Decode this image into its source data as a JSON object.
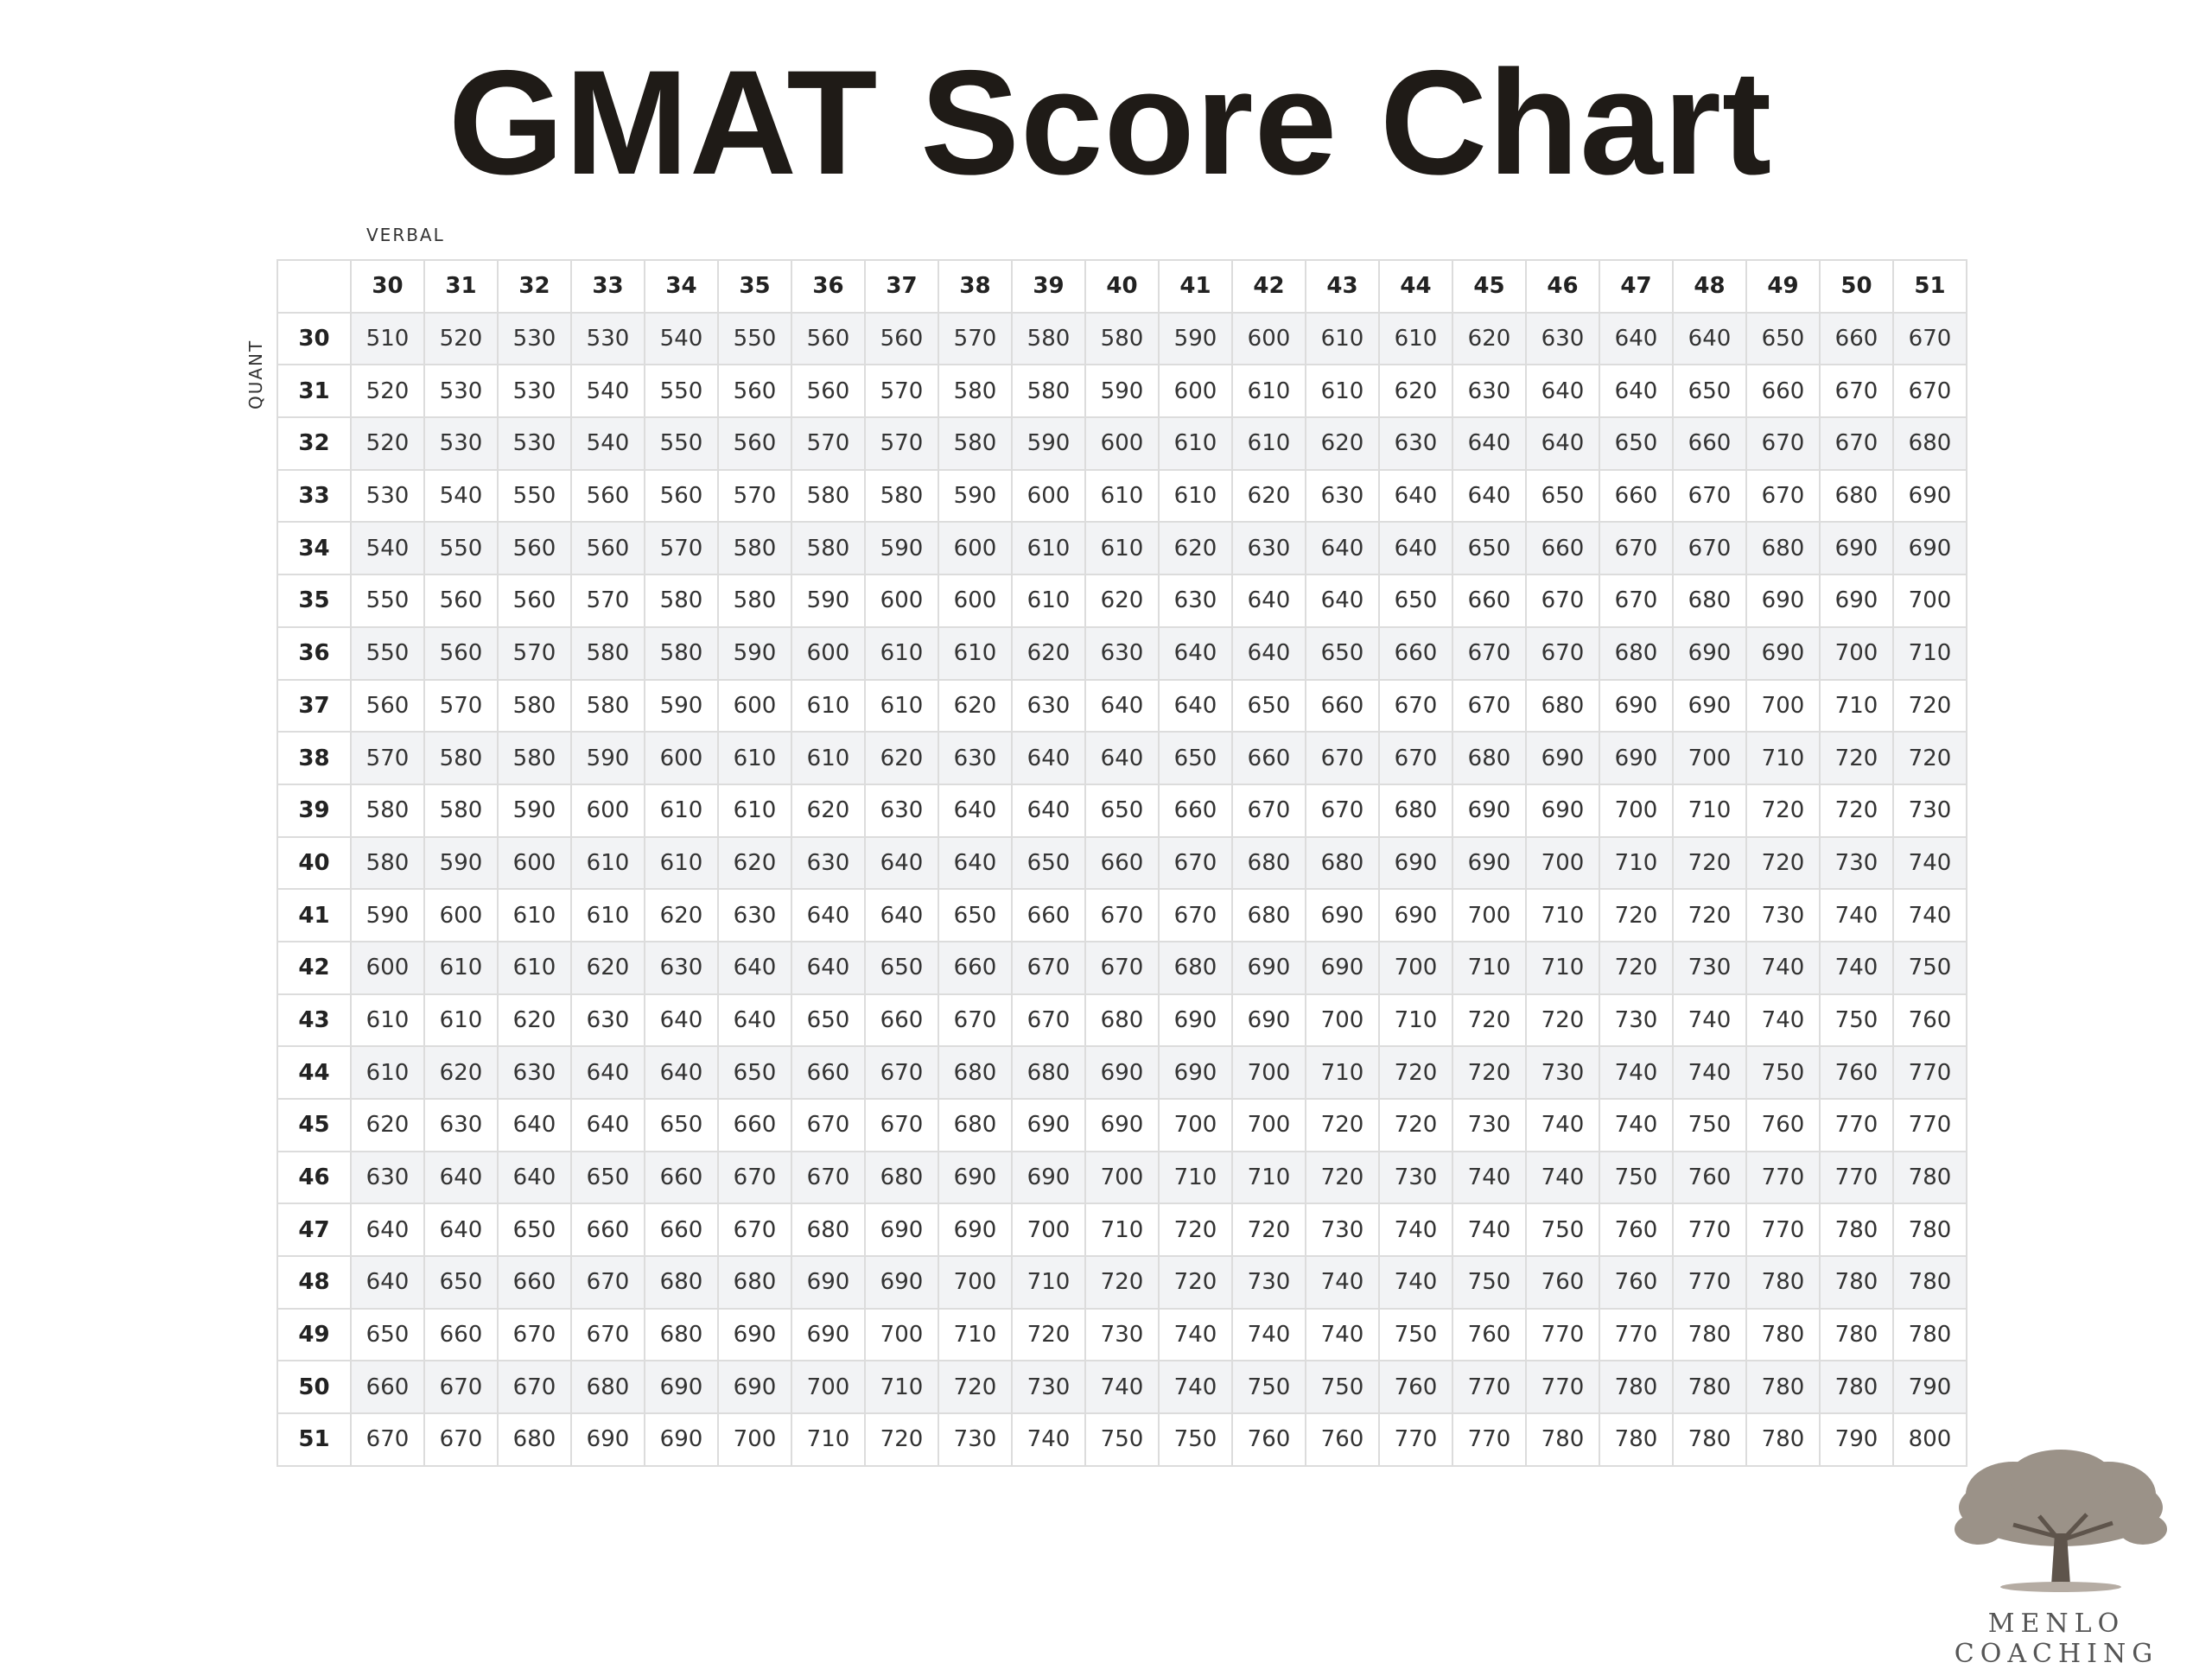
{
  "chart_data": {
    "type": "table",
    "title": "GMAT Score Chart",
    "column_axis_label": "VERBAL",
    "row_axis_label": "QUANT",
    "columns": [
      30,
      31,
      32,
      33,
      34,
      35,
      36,
      37,
      38,
      39,
      40,
      41,
      42,
      43,
      44,
      45,
      46,
      47,
      48,
      49,
      50,
      51
    ],
    "rows": [
      {
        "quant": 30,
        "values": [
          510,
          520,
          530,
          530,
          540,
          550,
          560,
          560,
          570,
          580,
          580,
          590,
          600,
          610,
          610,
          620,
          630,
          640,
          640,
          650,
          660,
          670
        ]
      },
      {
        "quant": 31,
        "values": [
          520,
          530,
          530,
          540,
          550,
          560,
          560,
          570,
          580,
          580,
          590,
          600,
          610,
          610,
          620,
          630,
          640,
          640,
          650,
          660,
          670,
          670
        ]
      },
      {
        "quant": 32,
        "values": [
          520,
          530,
          530,
          540,
          550,
          560,
          570,
          570,
          580,
          590,
          600,
          610,
          610,
          620,
          630,
          640,
          640,
          650,
          660,
          670,
          670,
          680
        ]
      },
      {
        "quant": 33,
        "values": [
          530,
          540,
          550,
          560,
          560,
          570,
          580,
          580,
          590,
          600,
          610,
          610,
          620,
          630,
          640,
          640,
          650,
          660,
          670,
          670,
          680,
          690
        ]
      },
      {
        "quant": 34,
        "values": [
          540,
          550,
          560,
          560,
          570,
          580,
          580,
          590,
          600,
          610,
          610,
          620,
          630,
          640,
          640,
          650,
          660,
          670,
          670,
          680,
          690,
          690
        ]
      },
      {
        "quant": 35,
        "values": [
          550,
          560,
          560,
          570,
          580,
          580,
          590,
          600,
          600,
          610,
          620,
          630,
          640,
          640,
          650,
          660,
          670,
          670,
          680,
          690,
          690,
          700
        ]
      },
      {
        "quant": 36,
        "values": [
          550,
          560,
          570,
          580,
          580,
          590,
          600,
          610,
          610,
          620,
          630,
          640,
          640,
          650,
          660,
          670,
          670,
          680,
          690,
          690,
          700,
          710
        ]
      },
      {
        "quant": 37,
        "values": [
          560,
          570,
          580,
          580,
          590,
          600,
          610,
          610,
          620,
          630,
          640,
          640,
          650,
          660,
          670,
          670,
          680,
          690,
          690,
          700,
          710,
          720
        ]
      },
      {
        "quant": 38,
        "values": [
          570,
          580,
          580,
          590,
          600,
          610,
          610,
          620,
          630,
          640,
          640,
          650,
          660,
          670,
          670,
          680,
          690,
          690,
          700,
          710,
          720,
          720
        ]
      },
      {
        "quant": 39,
        "values": [
          580,
          580,
          590,
          600,
          610,
          610,
          620,
          630,
          640,
          640,
          650,
          660,
          670,
          670,
          680,
          690,
          690,
          700,
          710,
          720,
          720,
          730
        ]
      },
      {
        "quant": 40,
        "values": [
          580,
          590,
          600,
          610,
          610,
          620,
          630,
          640,
          640,
          650,
          660,
          670,
          680,
          680,
          690,
          690,
          700,
          710,
          720,
          720,
          730,
          740
        ]
      },
      {
        "quant": 41,
        "values": [
          590,
          600,
          610,
          610,
          620,
          630,
          640,
          640,
          650,
          660,
          670,
          670,
          680,
          690,
          690,
          700,
          710,
          720,
          720,
          730,
          740,
          740
        ]
      },
      {
        "quant": 42,
        "values": [
          600,
          610,
          610,
          620,
          630,
          640,
          640,
          650,
          660,
          670,
          670,
          680,
          690,
          690,
          700,
          710,
          710,
          720,
          730,
          740,
          740,
          750
        ]
      },
      {
        "quant": 43,
        "values": [
          610,
          610,
          620,
          630,
          640,
          640,
          650,
          660,
          670,
          670,
          680,
          690,
          690,
          700,
          710,
          720,
          720,
          730,
          740,
          740,
          750,
          760
        ]
      },
      {
        "quant": 44,
        "values": [
          610,
          620,
          630,
          640,
          640,
          650,
          660,
          670,
          680,
          680,
          690,
          690,
          700,
          710,
          720,
          720,
          730,
          740,
          740,
          750,
          760,
          770
        ]
      },
      {
        "quant": 45,
        "values": [
          620,
          630,
          640,
          640,
          650,
          660,
          670,
          670,
          680,
          690,
          690,
          700,
          700,
          720,
          720,
          730,
          740,
          740,
          750,
          760,
          770,
          770
        ]
      },
      {
        "quant": 46,
        "values": [
          630,
          640,
          640,
          650,
          660,
          670,
          670,
          680,
          690,
          690,
          700,
          710,
          710,
          720,
          730,
          740,
          740,
          750,
          760,
          770,
          770,
          780
        ]
      },
      {
        "quant": 47,
        "values": [
          640,
          640,
          650,
          660,
          660,
          670,
          680,
          690,
          690,
          700,
          710,
          720,
          720,
          730,
          740,
          740,
          750,
          760,
          770,
          770,
          780,
          780
        ]
      },
      {
        "quant": 48,
        "values": [
          640,
          650,
          660,
          670,
          680,
          680,
          690,
          690,
          700,
          710,
          720,
          720,
          730,
          740,
          740,
          750,
          760,
          760,
          770,
          780,
          780,
          780
        ]
      },
      {
        "quant": 49,
        "values": [
          650,
          660,
          670,
          670,
          680,
          690,
          690,
          700,
          710,
          720,
          730,
          740,
          740,
          740,
          750,
          760,
          770,
          770,
          780,
          780,
          780,
          780
        ]
      },
      {
        "quant": 50,
        "values": [
          660,
          670,
          670,
          680,
          690,
          690,
          700,
          710,
          720,
          730,
          740,
          740,
          750,
          750,
          760,
          770,
          770,
          780,
          780,
          780,
          780,
          790
        ]
      },
      {
        "quant": 51,
        "values": [
          670,
          670,
          680,
          690,
          690,
          700,
          710,
          720,
          730,
          740,
          750,
          750,
          760,
          760,
          770,
          770,
          780,
          780,
          780,
          780,
          790,
          800
        ]
      }
    ],
    "colors": {
      "title": "#1f1b17",
      "stripe": "#f2f3f5",
      "grid": "#dcdcdc",
      "text": "#333333"
    }
  },
  "logo": {
    "icon": "oak-tree-icon",
    "text": "MENLO COACHING"
  }
}
